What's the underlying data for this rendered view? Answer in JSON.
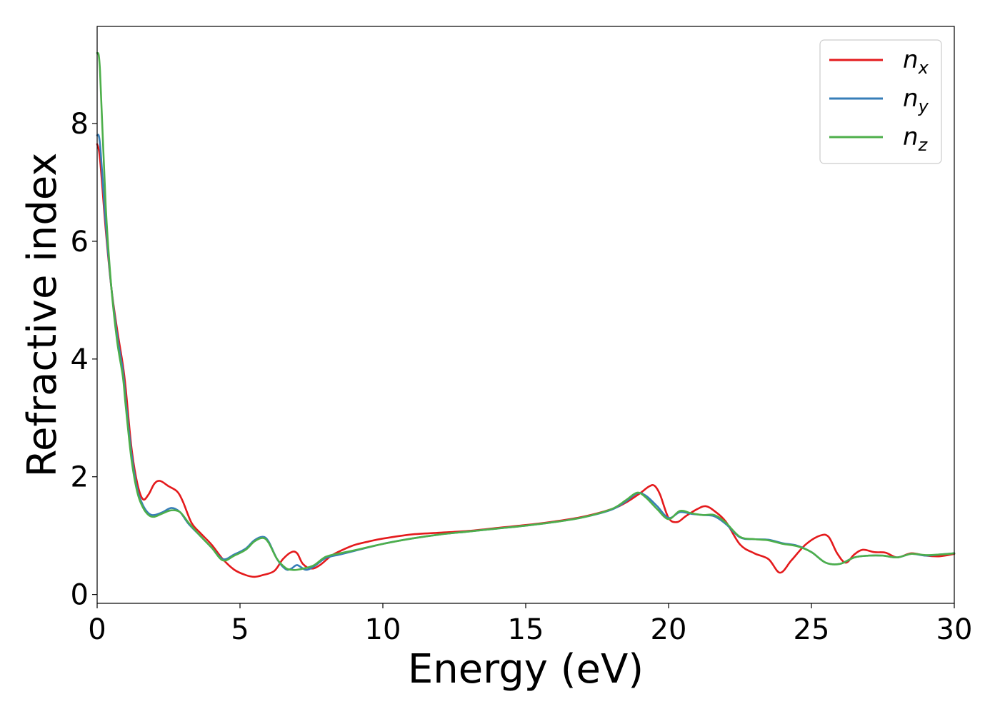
{
  "chart_data": {
    "type": "line",
    "xlabel": "Energy (eV)",
    "ylabel": "Refractive index",
    "xlim": [
      0,
      30
    ],
    "ylim": [
      -0.15,
      9.65
    ],
    "xticks": [
      0,
      5,
      10,
      15,
      20,
      25,
      30
    ],
    "yticks": [
      0,
      2,
      4,
      6,
      8
    ],
    "grid": false,
    "legend": "top-right",
    "series": [
      {
        "name": "n",
        "sub": "x",
        "color": "#e41a1c",
        "x": [
          0,
          0.1,
          0.3,
          0.5,
          0.7,
          0.9,
          1.0,
          1.2,
          1.4,
          1.6,
          1.8,
          2.0,
          2.2,
          2.5,
          2.8,
          3.0,
          3.3,
          3.6,
          4.0,
          4.4,
          4.8,
          5.2,
          5.5,
          5.8,
          6.2,
          6.5,
          6.8,
          7.0,
          7.2,
          7.5,
          7.8,
          8.2,
          8.6,
          9.0,
          9.5,
          10,
          11,
          12,
          13,
          14,
          15,
          16,
          17,
          18,
          18.5,
          19.0,
          19.3,
          19.5,
          19.7,
          20.0,
          20.3,
          20.6,
          21.0,
          21.3,
          21.6,
          22.0,
          22.5,
          23.0,
          23.5,
          23.9,
          24.3,
          24.8,
          25.3,
          25.6,
          25.9,
          26.2,
          26.5,
          26.8,
          27.2,
          27.6,
          28.0,
          28.5,
          29.0,
          29.5,
          30.0
        ],
        "y": [
          7.65,
          7.4,
          6.2,
          5.2,
          4.5,
          3.9,
          3.5,
          2.5,
          1.9,
          1.62,
          1.7,
          1.88,
          1.93,
          1.84,
          1.75,
          1.58,
          1.22,
          1.05,
          0.85,
          0.6,
          0.42,
          0.33,
          0.3,
          0.33,
          0.4,
          0.6,
          0.72,
          0.7,
          0.52,
          0.44,
          0.5,
          0.66,
          0.76,
          0.84,
          0.9,
          0.95,
          1.02,
          1.05,
          1.08,
          1.13,
          1.18,
          1.24,
          1.32,
          1.45,
          1.56,
          1.72,
          1.83,
          1.85,
          1.7,
          1.3,
          1.23,
          1.33,
          1.45,
          1.5,
          1.42,
          1.24,
          0.85,
          0.7,
          0.6,
          0.37,
          0.58,
          0.85,
          1.0,
          0.98,
          0.7,
          0.54,
          0.68,
          0.76,
          0.72,
          0.71,
          0.63,
          0.7,
          0.66,
          0.65,
          0.69
        ]
      },
      {
        "name": "n",
        "sub": "y",
        "color": "#377eb8",
        "x": [
          0,
          0.1,
          0.3,
          0.5,
          0.7,
          0.9,
          1.0,
          1.2,
          1.4,
          1.6,
          1.8,
          2.0,
          2.3,
          2.6,
          2.9,
          3.2,
          3.6,
          4.0,
          4.4,
          4.8,
          5.2,
          5.5,
          5.8,
          6.0,
          6.3,
          6.6,
          6.8,
          7.0,
          7.3,
          7.6,
          8.0,
          8.5,
          9.0,
          10,
          11,
          12,
          13,
          14,
          15,
          16,
          17,
          18,
          18.5,
          18.9,
          19.2,
          19.6,
          20.0,
          20.4,
          20.8,
          21.2,
          21.6,
          22.0,
          22.5,
          23.0,
          23.5,
          24.0,
          24.5,
          25.0,
          25.5,
          26.0,
          26.5,
          27.0,
          27.5,
          28.0,
          28.5,
          29.0,
          29.5,
          30.0
        ],
        "y": [
          7.8,
          7.65,
          6.3,
          5.2,
          4.4,
          3.8,
          3.3,
          2.4,
          1.8,
          1.52,
          1.38,
          1.35,
          1.4,
          1.47,
          1.4,
          1.2,
          1.0,
          0.8,
          0.6,
          0.68,
          0.78,
          0.92,
          0.98,
          0.9,
          0.6,
          0.43,
          0.44,
          0.5,
          0.42,
          0.48,
          0.62,
          0.68,
          0.74,
          0.86,
          0.95,
          1.02,
          1.07,
          1.12,
          1.17,
          1.23,
          1.31,
          1.44,
          1.58,
          1.72,
          1.68,
          1.5,
          1.3,
          1.4,
          1.37,
          1.35,
          1.33,
          1.2,
          0.97,
          0.94,
          0.93,
          0.87,
          0.83,
          0.72,
          0.54,
          0.52,
          0.63,
          0.66,
          0.66,
          0.63,
          0.69,
          0.66,
          0.68,
          0.7
        ]
      },
      {
        "name": "n",
        "sub": "z",
        "color": "#4daf4a",
        "x": [
          0,
          0.1,
          0.3,
          0.5,
          0.7,
          0.9,
          1.0,
          1.2,
          1.4,
          1.6,
          1.8,
          2.0,
          2.3,
          2.6,
          2.9,
          3.2,
          3.6,
          4.0,
          4.4,
          4.8,
          5.2,
          5.5,
          5.8,
          6.0,
          6.3,
          6.6,
          6.8,
          7.0,
          7.3,
          7.6,
          8.0,
          8.5,
          9.0,
          10,
          11,
          12,
          13,
          14,
          15,
          16,
          17,
          18,
          18.5,
          18.9,
          19.2,
          19.6,
          20.0,
          20.4,
          20.8,
          21.2,
          21.6,
          22.0,
          22.5,
          23.0,
          23.5,
          24.0,
          24.5,
          25.0,
          25.5,
          26.0,
          26.5,
          27.0,
          27.5,
          28.0,
          28.5,
          29.0,
          29.5,
          30.0
        ],
        "y": [
          9.2,
          8.9,
          6.6,
          5.2,
          4.3,
          3.7,
          3.2,
          2.3,
          1.75,
          1.48,
          1.35,
          1.32,
          1.38,
          1.43,
          1.4,
          1.22,
          1.0,
          0.8,
          0.58,
          0.66,
          0.76,
          0.9,
          0.96,
          0.88,
          0.6,
          0.45,
          0.42,
          0.42,
          0.45,
          0.5,
          0.64,
          0.7,
          0.75,
          0.86,
          0.95,
          1.02,
          1.07,
          1.12,
          1.17,
          1.23,
          1.31,
          1.45,
          1.6,
          1.73,
          1.65,
          1.45,
          1.28,
          1.42,
          1.38,
          1.35,
          1.35,
          1.22,
          0.98,
          0.94,
          0.92,
          0.86,
          0.82,
          0.72,
          0.54,
          0.52,
          0.63,
          0.66,
          0.66,
          0.63,
          0.69,
          0.67,
          0.68,
          0.7
        ]
      }
    ]
  }
}
